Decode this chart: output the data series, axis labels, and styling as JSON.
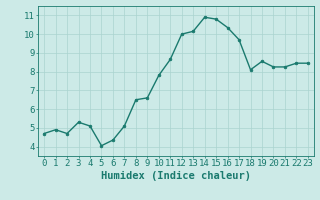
{
  "x": [
    0,
    1,
    2,
    3,
    4,
    5,
    6,
    7,
    8,
    9,
    10,
    11,
    12,
    13,
    14,
    15,
    16,
    17,
    18,
    19,
    20,
    21,
    22,
    23
  ],
  "y": [
    4.7,
    4.9,
    4.7,
    5.3,
    5.1,
    4.05,
    4.35,
    5.1,
    6.5,
    6.6,
    7.8,
    8.65,
    10.0,
    10.15,
    10.9,
    10.8,
    10.35,
    9.7,
    8.1,
    8.55,
    8.25,
    8.25,
    8.45,
    8.45
  ],
  "line_color": "#1a7a6e",
  "marker": "o",
  "marker_size": 2.0,
  "bg_color": "#cceae7",
  "grid_color": "#aad4cf",
  "axis_color": "#1a7a6e",
  "xlabel": "Humidex (Indice chaleur)",
  "ylim": [
    3.5,
    11.5
  ],
  "xlim": [
    -0.5,
    23.5
  ],
  "yticks": [
    4,
    5,
    6,
    7,
    8,
    9,
    10,
    11
  ],
  "xticks": [
    0,
    1,
    2,
    3,
    4,
    5,
    6,
    7,
    8,
    9,
    10,
    11,
    12,
    13,
    14,
    15,
    16,
    17,
    18,
    19,
    20,
    21,
    22,
    23
  ],
  "tick_color": "#1a7a6e",
  "xlabel_fontsize": 7.5,
  "tick_fontsize": 6.5,
  "linewidth": 1.0
}
